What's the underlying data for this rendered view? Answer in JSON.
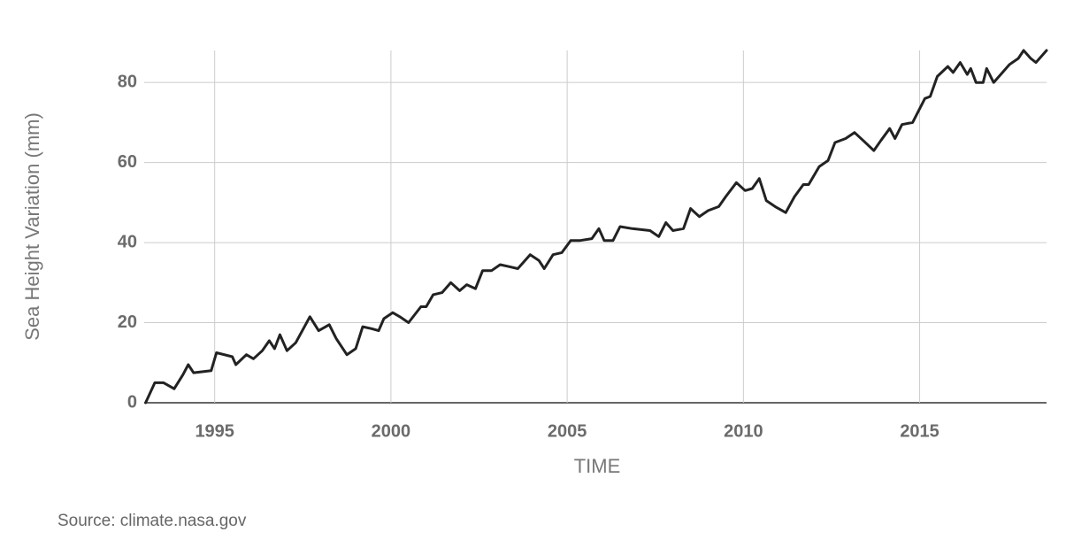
{
  "chart_data": {
    "type": "line",
    "y_label": "Sea Height Variation (mm)",
    "x_label": "TIME",
    "source": "Source:  climate.nasa.gov",
    "xlim": [
      1993,
      2018.6
    ],
    "xticks": [
      1995,
      2000,
      2005,
      2010,
      2015
    ],
    "ylim": [
      0,
      88
    ],
    "yticks": [
      0,
      20,
      40,
      60,
      80
    ],
    "grid": true,
    "x": [
      1993.04,
      1993.3,
      1993.55,
      1993.85,
      1994.1,
      1994.25,
      1994.4,
      1994.9,
      1995.05,
      1995.5,
      1995.6,
      1995.9,
      1996.1,
      1996.35,
      1996.55,
      1996.7,
      1996.85,
      1997.05,
      1997.3,
      1997.7,
      1997.95,
      1998.25,
      1998.45,
      1998.75,
      1999.0,
      1999.2,
      1999.45,
      1999.65,
      1999.8,
      2000.05,
      2000.25,
      2000.5,
      2000.85,
      2001.0,
      2001.2,
      2001.45,
      2001.7,
      2001.95,
      2002.15,
      2002.4,
      2002.6,
      2002.85,
      2003.1,
      2003.35,
      2003.6,
      2003.95,
      2004.2,
      2004.35,
      2004.6,
      2004.85,
      2005.1,
      2005.35,
      2005.7,
      2005.9,
      2006.05,
      2006.3,
      2006.5,
      2006.85,
      2007.35,
      2007.6,
      2007.8,
      2008.0,
      2008.3,
      2008.5,
      2008.75,
      2009.0,
      2009.3,
      2009.5,
      2009.8,
      2010.05,
      2010.25,
      2010.45,
      2010.65,
      2010.9,
      2011.2,
      2011.45,
      2011.7,
      2011.85,
      2012.15,
      2012.4,
      2012.6,
      2012.9,
      2013.15,
      2013.4,
      2013.7,
      2013.9,
      2014.15,
      2014.3,
      2014.5,
      2014.8,
      2015.15,
      2015.3,
      2015.5,
      2015.8,
      2015.95,
      2016.15,
      2016.35,
      2016.45,
      2016.6,
      2016.8,
      2016.9,
      2017.1,
      2017.35,
      2017.55,
      2017.8,
      2017.95,
      2018.15,
      2018.3,
      2018.6
    ],
    "series": [
      {
        "color": "#222222",
        "values": [
          0,
          5,
          5,
          3.5,
          7,
          9.5,
          7.5,
          8,
          12.5,
          11.5,
          9.5,
          12,
          11,
          13,
          15.5,
          13.5,
          17,
          13,
          15,
          21.5,
          18,
          19.5,
          16,
          12,
          13.5,
          19,
          18.5,
          18,
          21,
          22.5,
          21.5,
          20,
          24,
          24,
          27,
          27.5,
          30,
          28,
          29.5,
          28.5,
          33,
          33,
          34.5,
          34,
          33.5,
          37,
          35.5,
          33.5,
          37,
          37.5,
          40.5,
          40.5,
          41,
          43.5,
          40.5,
          40.5,
          44,
          43.5,
          43,
          41.5,
          45,
          43,
          43.5,
          48.5,
          46.5,
          48,
          49,
          51.5,
          55,
          53,
          53.5,
          56,
          50.5,
          49,
          47.5,
          51.5,
          54.5,
          54.5,
          59,
          60.5,
          65,
          66,
          67.5,
          65.5,
          63,
          65.5,
          68.5,
          66,
          69.5,
          70,
          76,
          76.5,
          81.5,
          84,
          82.5,
          85,
          82,
          83.5,
          80,
          80,
          83.5,
          80,
          82.5,
          84.5,
          86,
          88,
          86,
          85,
          88
        ]
      }
    ]
  }
}
